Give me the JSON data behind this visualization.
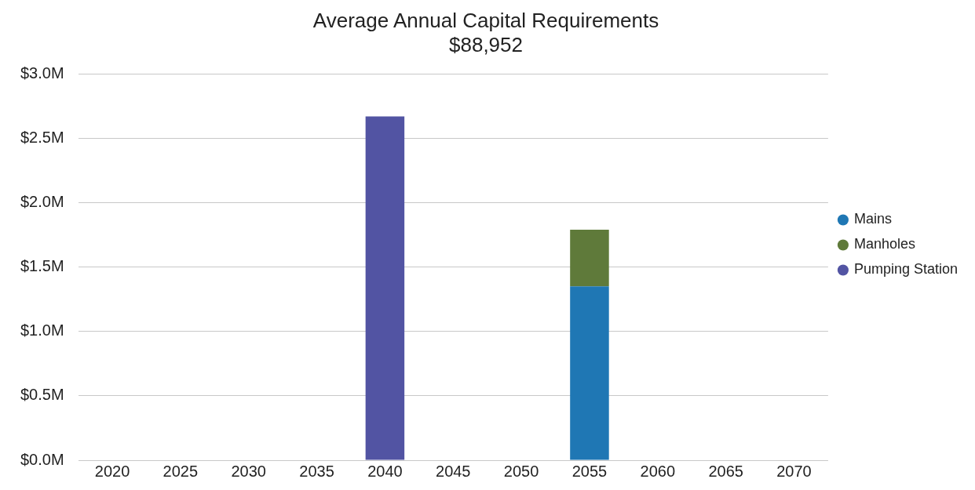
{
  "chart_data": {
    "type": "bar",
    "title": "Average Annual Capital Requirements",
    "subtitle": "$88,952",
    "categories": [
      "2020",
      "2025",
      "2030",
      "2035",
      "2040",
      "2045",
      "2050",
      "2055",
      "2060",
      "2065",
      "2070"
    ],
    "stacked": true,
    "series": [
      {
        "name": "Mains",
        "color": "#1f77b4",
        "values": [
          null,
          null,
          null,
          null,
          null,
          null,
          null,
          1.35,
          null,
          null,
          null
        ]
      },
      {
        "name": "Manholes",
        "color": "#5f7a3a",
        "values": [
          null,
          null,
          null,
          null,
          null,
          null,
          null,
          0.44,
          null,
          null,
          null
        ]
      },
      {
        "name": "Pumping Station",
        "color": "#5254a3",
        "values": [
          null,
          null,
          null,
          null,
          2.67,
          null,
          null,
          null,
          null,
          null,
          null
        ]
      }
    ],
    "ylim": [
      0,
      3
    ],
    "yticks": [
      {
        "value": 0,
        "label": "$0.0M"
      },
      {
        "value": 0.5,
        "label": "$0.5M"
      },
      {
        "value": 1,
        "label": "$1.0M"
      },
      {
        "value": 1.5,
        "label": "$1.5M"
      },
      {
        "value": 2,
        "label": "$2.0M"
      },
      {
        "value": 2.5,
        "label": "$2.5M"
      },
      {
        "value": 3,
        "label": "$3.0M"
      }
    ],
    "grid": "y",
    "legend": "right"
  }
}
